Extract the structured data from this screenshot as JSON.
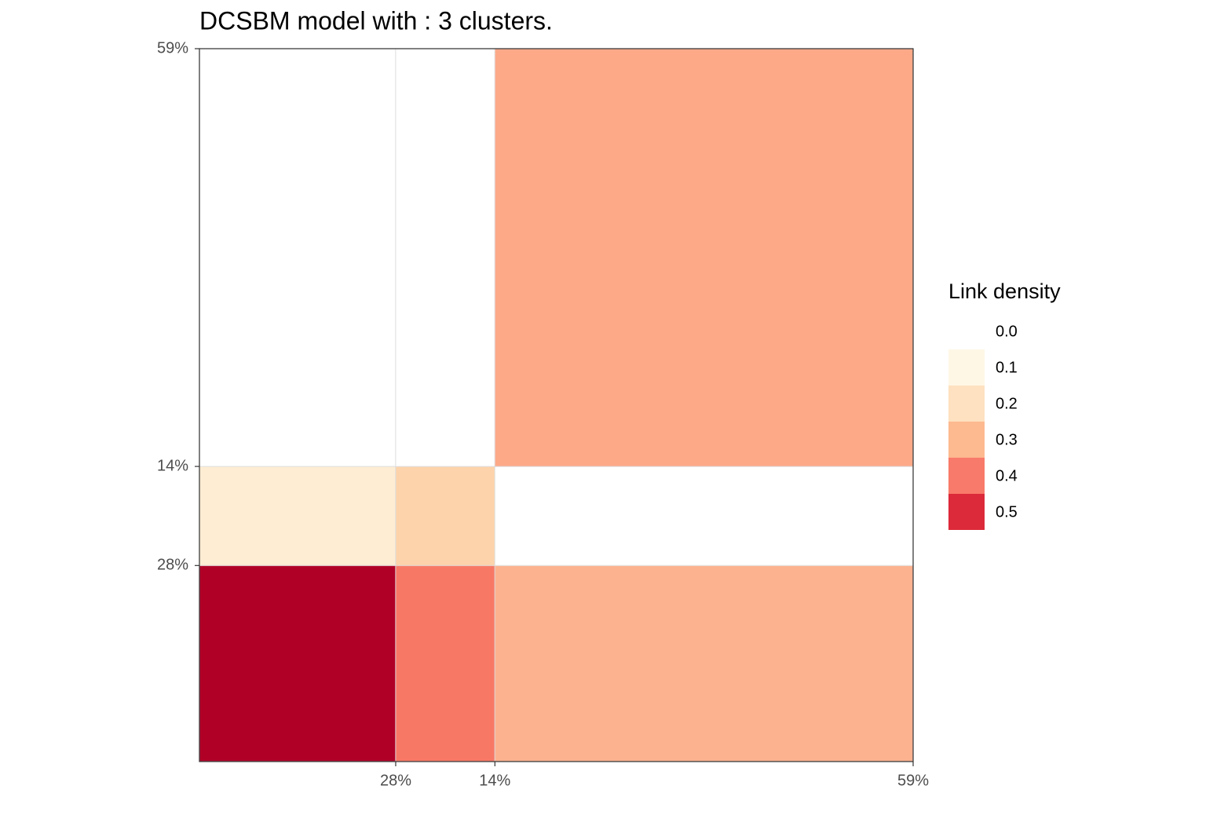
{
  "chart_data": {
    "type": "block_heatmap",
    "title": "DCSBM model with : 3 clusters.",
    "cluster_sizes": [
      {
        "value": 27.5,
        "label": "28%"
      },
      {
        "value": 13.9,
        "label": "14%"
      },
      {
        "value": 58.6,
        "label": "59%"
      }
    ],
    "xlim": [
      0,
      100
    ],
    "ylim": [
      0,
      100
    ],
    "values": [
      [
        0.6,
        0.4,
        0.3
      ],
      [
        0.15,
        0.22,
        0
      ],
      [
        0,
        0,
        0.32
      ]
    ],
    "cell_colors": [
      [
        "#b10026",
        "#f87866",
        "#fdb28f"
      ],
      [
        "#feedd3",
        "#fdd3ab",
        "#ffffff"
      ],
      [
        "#ffffff",
        "#ffffff",
        "#fda988"
      ]
    ],
    "legend": {
      "title": "Link density",
      "breaks": [
        {
          "value": 0,
          "label": "0.0"
        },
        0.1,
        0.2,
        0.3,
        0.4,
        0.5
      ],
      "colors": [
        "#ffffff",
        "#fff7e6",
        "#fee1c0",
        "#fdb990",
        "#f87a6a",
        "#dc2a3a"
      ]
    }
  }
}
